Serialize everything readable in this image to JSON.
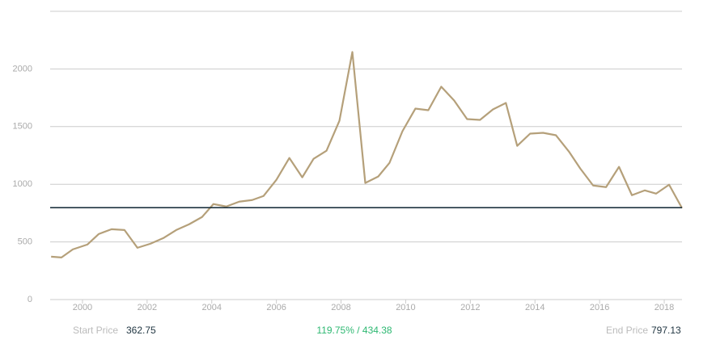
{
  "chart_data": {
    "type": "line",
    "x": [
      1999.03,
      1999.35,
      1999.7,
      2000.15,
      2000.5,
      2000.9,
      2001.3,
      2001.7,
      2002.1,
      2002.5,
      2002.9,
      2003.3,
      2003.7,
      2004.05,
      2004.45,
      2004.85,
      2005.25,
      2005.6,
      2006.0,
      2006.4,
      2006.8,
      2007.15,
      2007.55,
      2007.95,
      2008.35,
      2008.75,
      2009.15,
      2009.5,
      2009.9,
      2010.3,
      2010.7,
      2011.1,
      2011.5,
      2011.9,
      2012.3,
      2012.7,
      2013.1,
      2013.45,
      2013.85,
      2014.25,
      2014.65,
      2015.05,
      2015.4,
      2015.8,
      2016.2,
      2016.6,
      2017.0,
      2017.4,
      2017.75,
      2018.15,
      2018.55
    ],
    "series": [
      {
        "color": "#b5a07a",
        "values": [
          372,
          365,
          435,
          477,
          568,
          610,
          603,
          449,
          484,
          533,
          603,
          653,
          716,
          828,
          807,
          849,
          863,
          898,
          1039,
          1228,
          1060,
          1221,
          1291,
          1551,
          2147,
          1011,
          1067,
          1186,
          1460,
          1656,
          1642,
          1846,
          1726,
          1565,
          1558,
          1649,
          1705,
          1333,
          1439,
          1446,
          1425,
          1284,
          1137,
          989,
          975,
          1151,
          905,
          947,
          919,
          996,
          793
        ]
      }
    ],
    "xlim": [
      1999,
      2018.55
    ],
    "xticks": [
      2000,
      2002,
      2004,
      2006,
      2008,
      2010,
      2012,
      2014,
      2016,
      2018
    ],
    "ylim": [
      0,
      2500
    ],
    "yticks": [
      0,
      500,
      1000,
      1500,
      2000
    ],
    "grid": true
  },
  "footer": {
    "start_label": "Start Price",
    "start_price": 362.75,
    "change": "119.75% / 434.38",
    "end_label": "End Price",
    "end_price": 797.13
  }
}
